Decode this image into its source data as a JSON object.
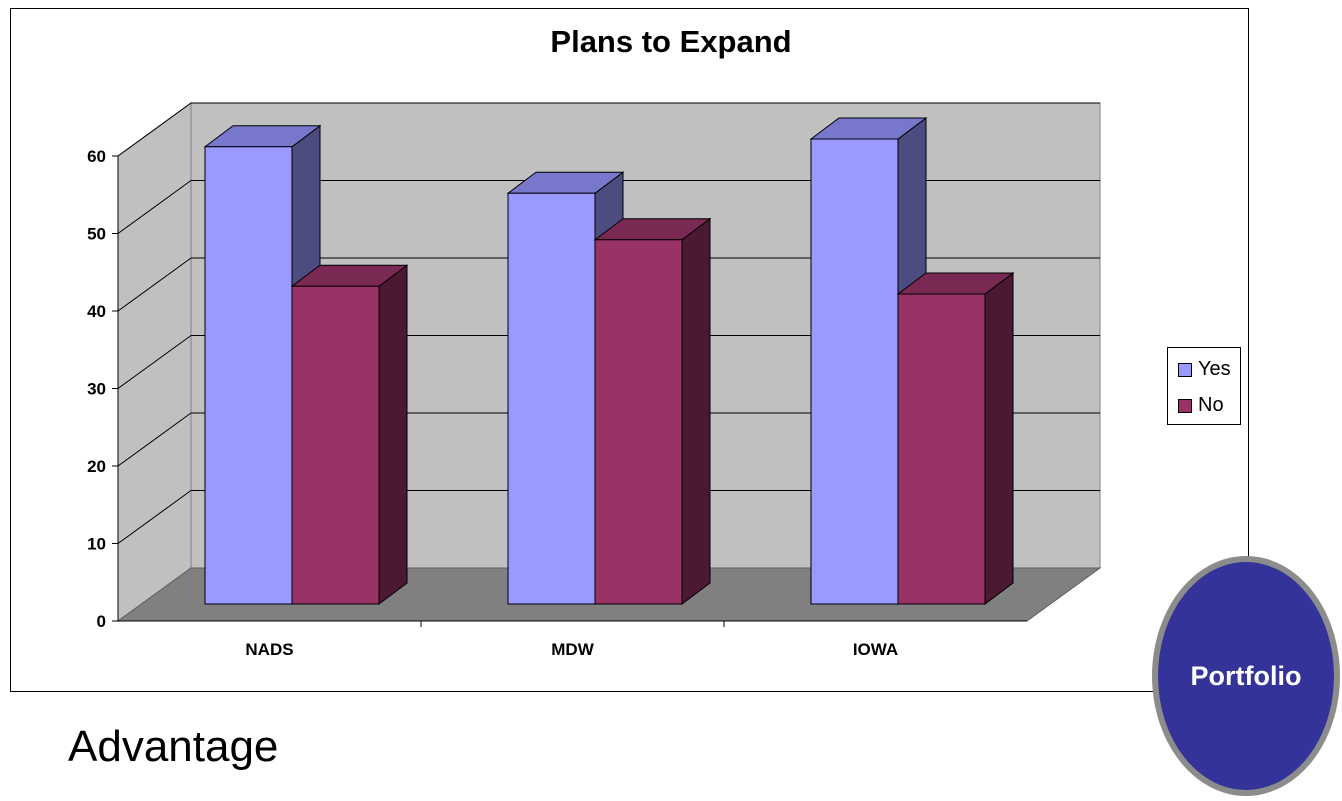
{
  "chart_data": {
    "type": "bar",
    "title": "Plans to Expand",
    "categories": [
      "NADS",
      "MDW",
      "IOWA"
    ],
    "series": [
      {
        "name": "Yes",
        "values": [
          59,
          53,
          60
        ],
        "color": "#9999ff"
      },
      {
        "name": "No",
        "values": [
          41,
          47,
          40
        ],
        "color": "#993366"
      }
    ],
    "yticks": [
      0,
      10,
      20,
      30,
      40,
      50,
      60
    ],
    "ylim": [
      0,
      60
    ],
    "grid": true,
    "legend_position": "right",
    "style": "3d-column"
  },
  "legend": {
    "yes_label": "Yes",
    "no_label": "No"
  },
  "button": {
    "label": "Portfolio"
  },
  "caption": {
    "text": "Advantage"
  }
}
